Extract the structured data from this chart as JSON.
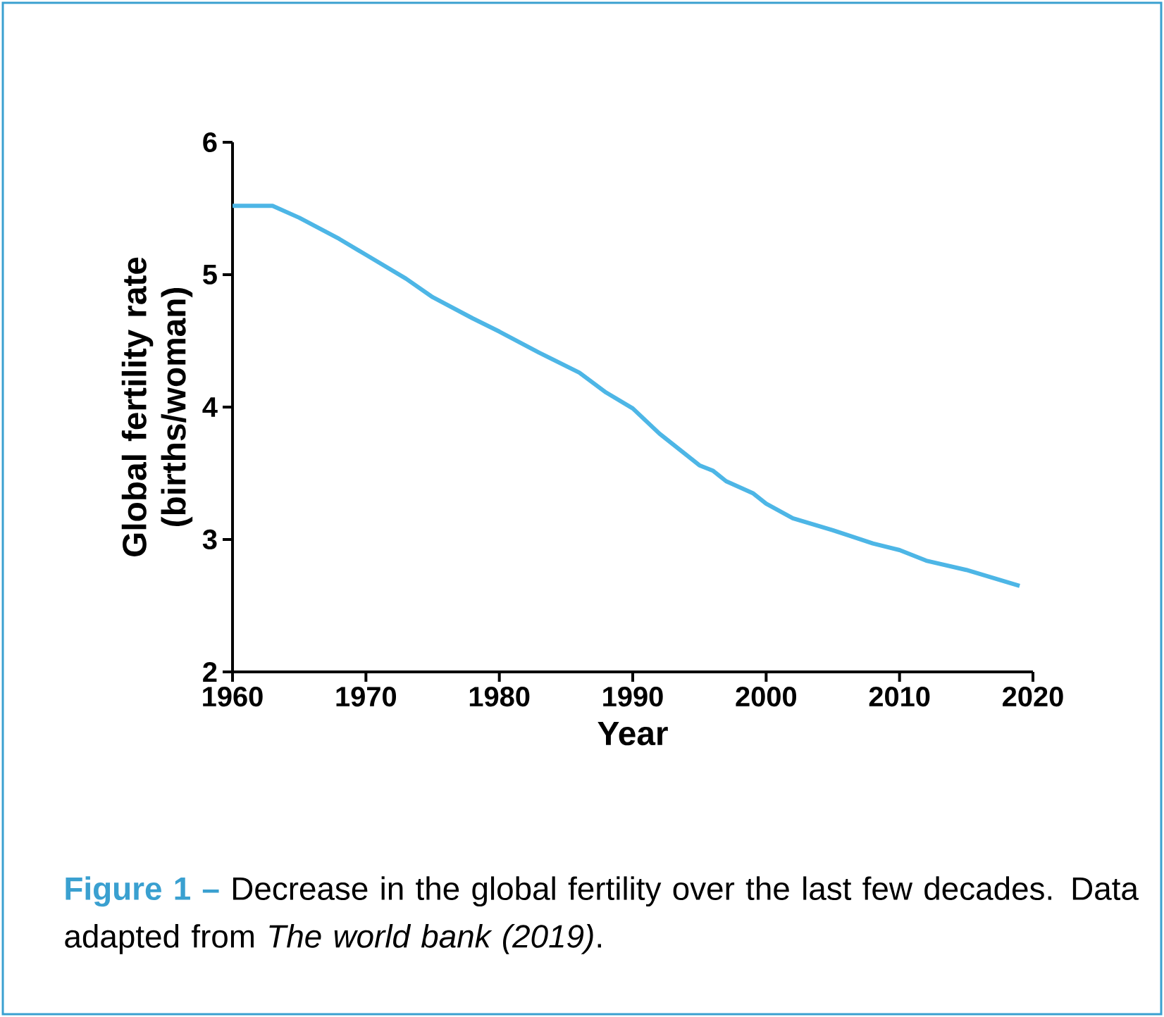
{
  "chart_data": {
    "type": "line",
    "xlabel": "Year",
    "ylabel": "Global fertility rate (births/woman)",
    "x": [
      1960,
      1963,
      1965,
      1968,
      1970,
      1973,
      1975,
      1978,
      1980,
      1983,
      1986,
      1988,
      1990,
      1992,
      1993,
      1995,
      1996,
      1997,
      1999,
      2000,
      2002,
      2005,
      2008,
      2010,
      2012,
      2015,
      2019
    ],
    "values": [
      5.52,
      5.52,
      5.43,
      5.27,
      5.15,
      4.97,
      4.83,
      4.67,
      4.57,
      4.41,
      4.26,
      4.11,
      3.99,
      3.8,
      3.72,
      3.56,
      3.52,
      3.44,
      3.35,
      3.27,
      3.16,
      3.07,
      2.97,
      2.92,
      2.84,
      2.77,
      2.65
    ],
    "color": "#4db6e6",
    "xlim": [
      1960,
      2020
    ],
    "xticks": [
      1960,
      1970,
      1980,
      1990,
      2000,
      2010,
      2020
    ],
    "ylim": [
      2,
      6
    ],
    "yticks": [
      2,
      3,
      4,
      5,
      6
    ],
    "annotations": [
      "Figure 1 –",
      "Decrease in the global fertility over the last few decades. Data adapted from *The world bank (2019)*."
    ]
  }
}
